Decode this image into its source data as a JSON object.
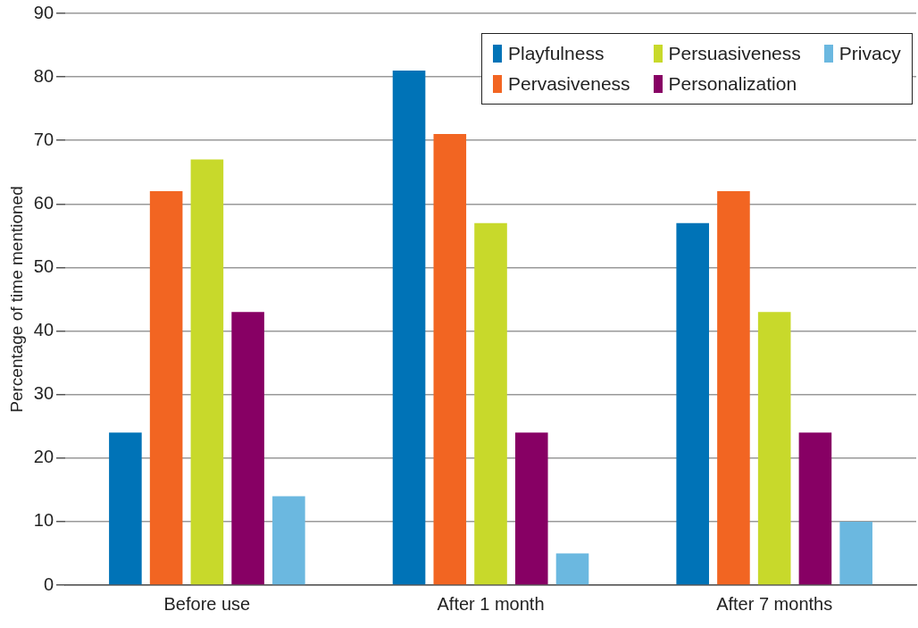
{
  "chart_data": {
    "type": "bar",
    "ylabel": "Percentage of time mentioned",
    "categories": [
      "Before use",
      "After 1 month",
      "After 7 months"
    ],
    "series": [
      {
        "name": "Playfulness",
        "color": "#0073b7",
        "values": [
          24,
          81,
          57
        ]
      },
      {
        "name": "Pervasiveness",
        "color": "#f26522",
        "values": [
          62,
          71,
          62
        ]
      },
      {
        "name": "Persuasiveness",
        "color": "#c8d92b",
        "values": [
          67,
          57,
          43
        ]
      },
      {
        "name": "Personalization",
        "color": "#870064",
        "values": [
          43,
          24,
          24
        ]
      },
      {
        "name": "Privacy",
        "color": "#6bb8e0",
        "values": [
          14,
          5,
          10
        ]
      }
    ],
    "ylim": [
      0,
      90
    ],
    "yticks": [
      0,
      10,
      20,
      30,
      40,
      50,
      60,
      70,
      80,
      90
    ],
    "grid": "y",
    "legend": "top right"
  }
}
